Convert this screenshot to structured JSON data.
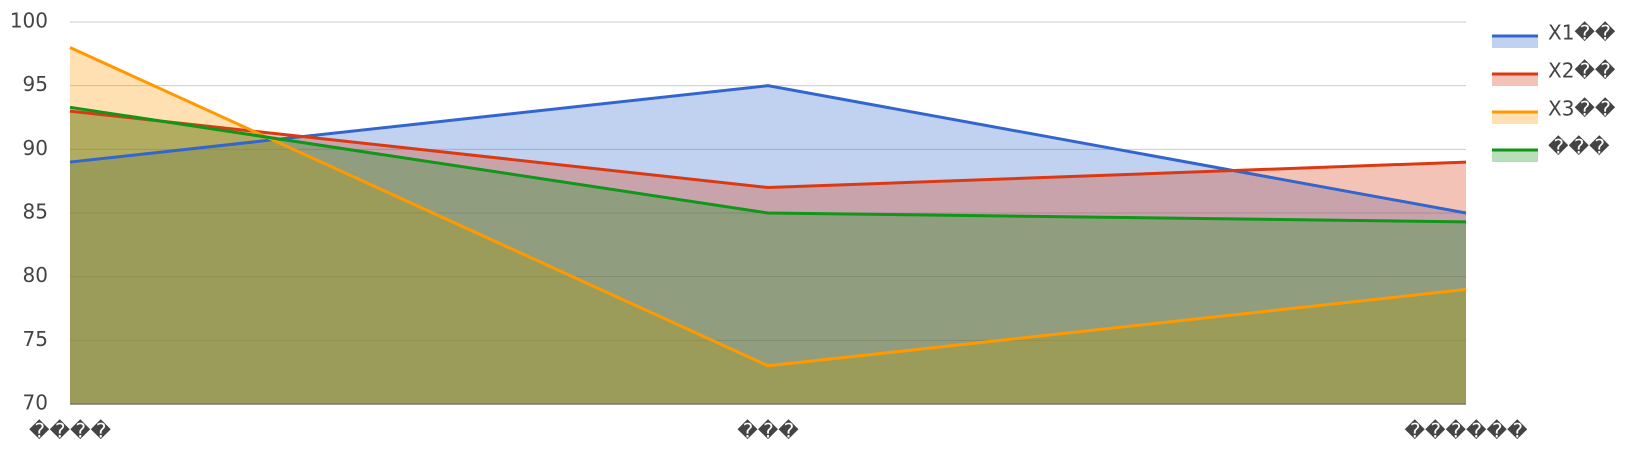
{
  "chart_data": {
    "type": "area",
    "categories": [
      "����",
      "���",
      "������"
    ],
    "series": [
      {
        "name": "X1��",
        "color": "#3366cc",
        "values": [
          89,
          95,
          85
        ]
      },
      {
        "name": "X2��",
        "color": "#dc3912",
        "values": [
          93,
          87,
          89
        ]
      },
      {
        "name": "X3��",
        "color": "#ff9900",
        "values": [
          98,
          73,
          79
        ]
      },
      {
        "name": "���",
        "color": "#109618",
        "values": [
          93.3,
          85,
          84.3
        ]
      }
    ],
    "ylim": [
      70,
      100
    ],
    "yticks": [
      70,
      75,
      80,
      85,
      90,
      95,
      100
    ],
    "grid": true,
    "legend": "right"
  }
}
